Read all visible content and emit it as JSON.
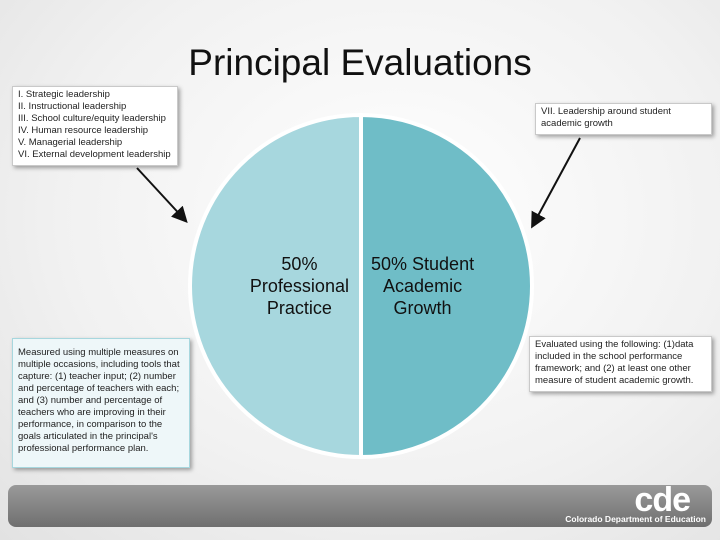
{
  "chart_data": {
    "type": "pie",
    "title": "Principal Evaluations",
    "categories": [
      "Student Academic Growth",
      "Professional Practice"
    ],
    "values": [
      50,
      50
    ],
    "value_labels": [
      "50%",
      "50%"
    ],
    "colors": [
      "#6fbdc7",
      "#a7d7de"
    ],
    "annotations": {
      "standards": [
        "I. Strategic leadership",
        "II. Instructional leadership",
        "III. School culture/equity leadership",
        "IV. Human resource leadership",
        "V. Managerial leadership",
        "VI. External development leadership"
      ],
      "growth_standard": "VII. Leadership around student academic growth",
      "practice_measures": "Measured using multiple measures on multiple occasions, including tools that capture: (1) teacher input; (2) number and percentage of teachers with each; and (3) number and percentage of teachers who are improving in their performance, in comparison to the goals articulated in the principal's professional performance plan.",
      "growth_measures": "Evaluated using the following: (1)data included in the school performance framework; and (2) at least one other measure of student academic growth."
    },
    "footer": {
      "logo": "cde",
      "agency": "Colorado Department of Education"
    }
  }
}
